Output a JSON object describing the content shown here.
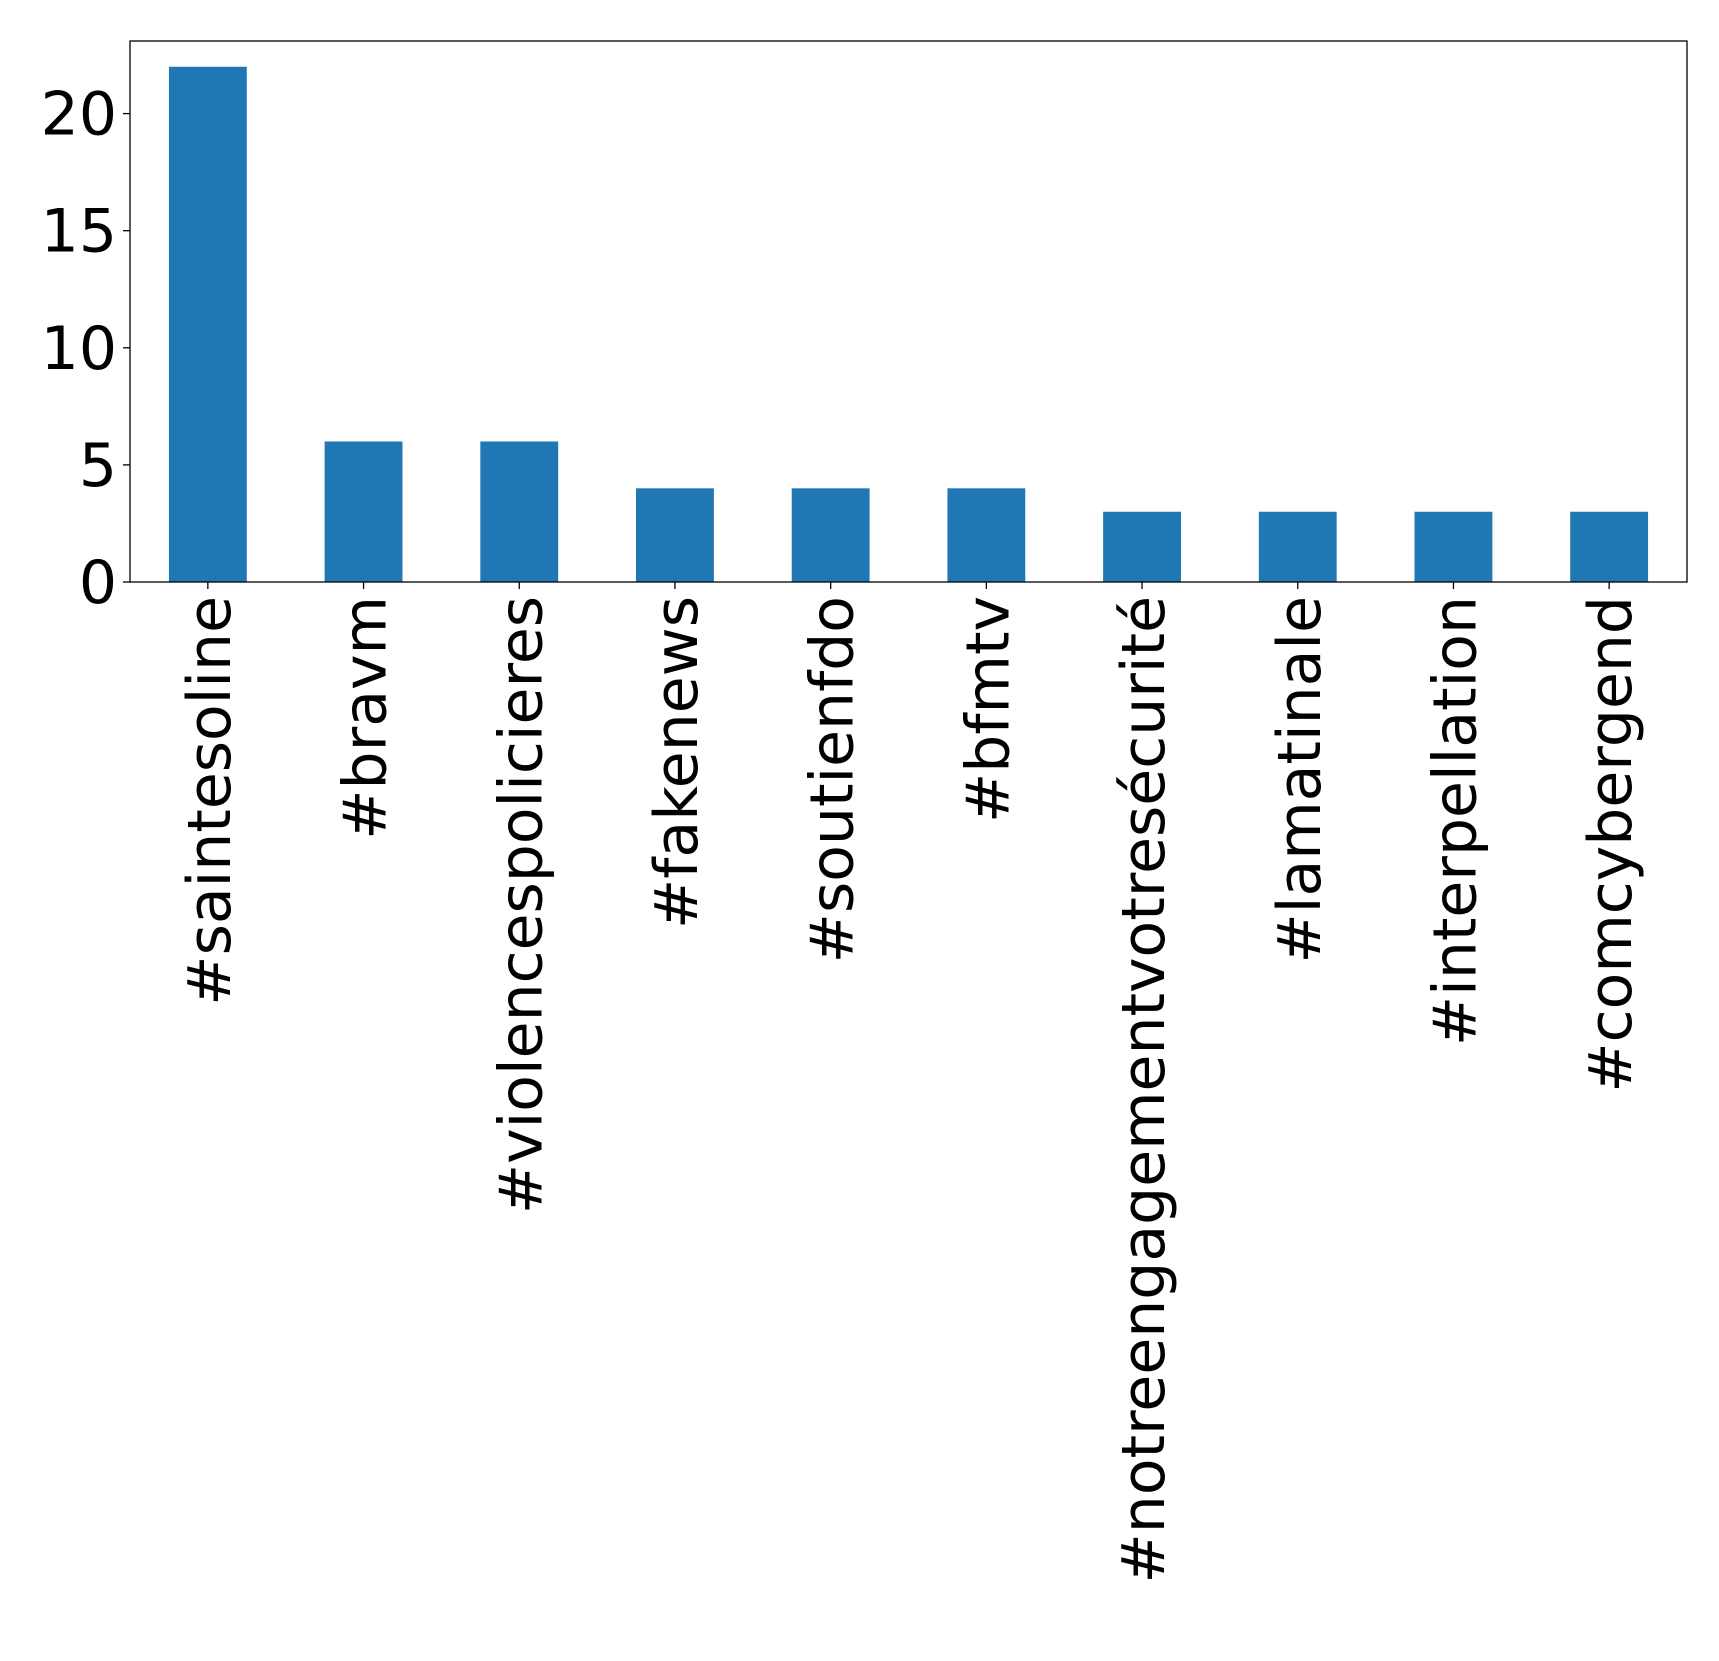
{
  "chart_data": {
    "type": "bar",
    "title": "",
    "xlabel": "",
    "ylabel": "",
    "categories": [
      "#saintesoline",
      "#bravm",
      "#violencespolicieres",
      "#fakenews",
      "#soutienfdo",
      "#bfmtv",
      "#notreengagementvotresécurité",
      "#lamatinale",
      "#interpellation",
      "#comcybergend"
    ],
    "values": [
      22,
      6,
      6,
      4,
      4,
      4,
      3,
      3,
      3,
      3
    ],
    "ylim": [
      0,
      23.1
    ],
    "yticks": [
      0,
      5,
      10,
      15,
      20
    ],
    "bar_color": "#1f77b4",
    "grid": false,
    "legend": "none"
  }
}
